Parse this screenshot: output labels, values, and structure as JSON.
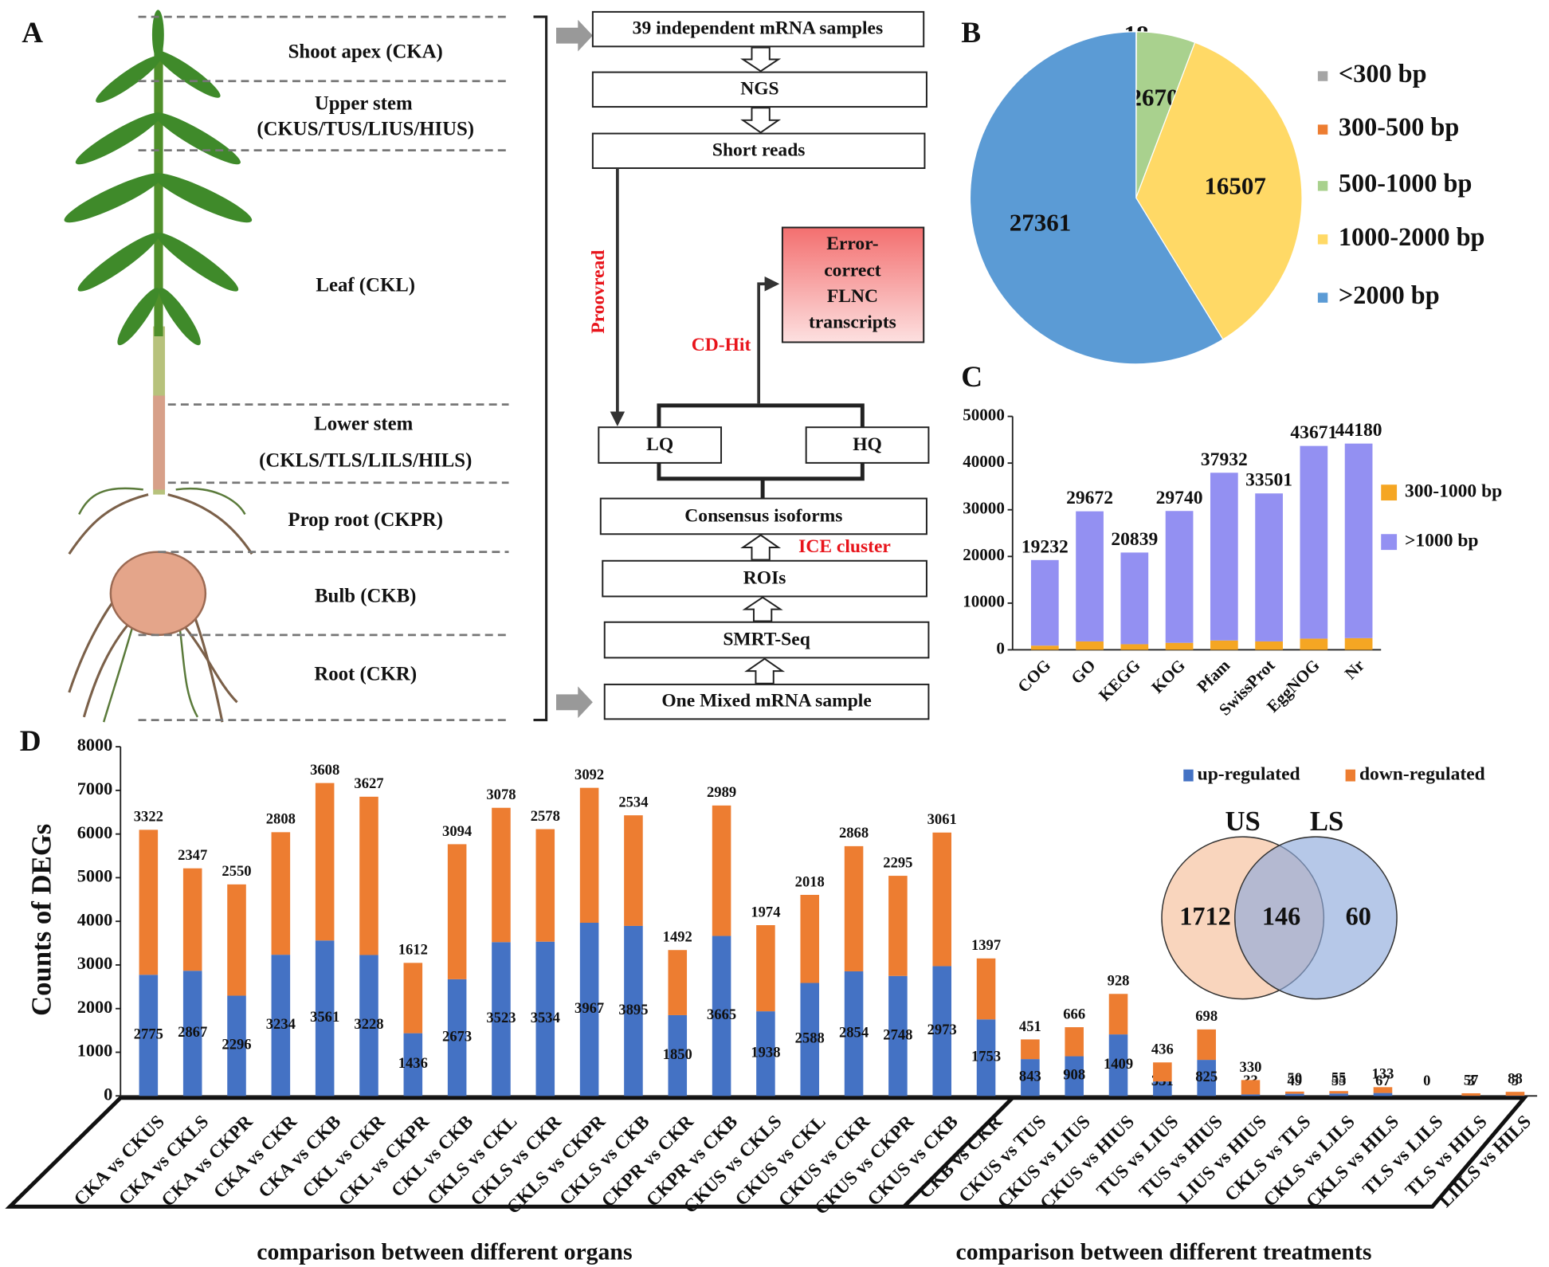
{
  "panel_labels": [
    "A",
    "B",
    "C",
    "D"
  ],
  "organ_labels": [
    "Shoot apex (CKA)",
    "Upper stem",
    "(CKUS/TUS/LIUS/HIUS)",
    "Leaf (CKL)",
    "Lower stem",
    "(CKLS/TLS/LILS/HILS)",
    "Prop root (CKPR)",
    "Bulb (CKB)",
    "Root (CKR)"
  ],
  "flowchart": {
    "boxes": [
      "39 independent mRNA samples",
      "NGS",
      "Short reads",
      "LQ",
      "HQ",
      "Consensus isoforms",
      "ROIs",
      "SMRT-Seq",
      "One Mixed mRNA sample"
    ],
    "result": [
      "Error-",
      "correct",
      "FLNC",
      "transcripts"
    ],
    "steps": [
      "Proovread",
      "CD-Hit",
      "ICE cluster"
    ]
  },
  "chart_data": [
    {
      "type": "pie",
      "categories": [
        "<300 bp",
        "300-500 bp",
        "500-1000 bp",
        "1000-2000 bp",
        ">2000 bp"
      ],
      "values": [
        0,
        18,
        2670,
        16507,
        27361
      ],
      "colors": [
        "#a5a5a5",
        "#ed7d31",
        "#a9d18e",
        "#ffd966",
        "#5b9bd5"
      ],
      "legend": "right"
    },
    {
      "type": "bar",
      "stacked": true,
      "categories": [
        "COG",
        "GO",
        "KEGG",
        "KOG",
        "Pfam",
        "SwissProt",
        "EggNOG",
        "Nr"
      ],
      "series": [
        {
          "name": "300-1000 bp",
          "color": "#f5a623",
          "values": [
            900,
            1800,
            1200,
            1500,
            2000,
            1800,
            2400,
            2500
          ]
        },
        {
          "name": ">1000 bp",
          "color": "#9390f2",
          "values": [
            18332,
            27872,
            19639,
            28240,
            35932,
            31701,
            41271,
            41680
          ]
        }
      ],
      "totals": [
        19232,
        29672,
        20839,
        29740,
        37932,
        33501,
        43671,
        44180
      ],
      "ylim": [
        0,
        50000
      ],
      "yticks": [
        0,
        10000,
        20000,
        30000,
        40000,
        50000
      ],
      "legend": "right"
    },
    {
      "type": "bar",
      "stacked": true,
      "y_label": "Counts of DEGs",
      "categories": [
        "CKA vs CKUS",
        "CKA vs CKLS",
        "CKA vs CKPR",
        "CKA vs CKR",
        "CKA vs CKB",
        "CKL vs CKR",
        "CKL vs CKPR",
        "CKL vs CKB",
        "CKLS vs CKL",
        "CKLS vs CKR",
        "CKLS vs CKPR",
        "CKLS vs CKB",
        "CKPR vs CKR",
        "CKPR vs CKB",
        "CKUS vs CKLS",
        "CKUS vs CKL",
        "CKUS vs CKR",
        "CKUS vs CKPR",
        "CKUS vs CKB",
        "CKB vs CKR",
        "CKUS vs TUS",
        "CKUS vs LIUS",
        "CKUS vs HIUS",
        "TUS vs LIUS",
        "TUS vs HIUS",
        "LIUS vs HIUS",
        "CKLS vs TLS",
        "CKLS vs LILS",
        "CKLS vs HILS",
        "TLS vs LILS",
        "TLS vs HILS",
        "LIILS vs HILS"
      ],
      "series": [
        {
          "name": "up-regulated",
          "color": "#4472c4",
          "values": [
            2775,
            2867,
            2296,
            3234,
            3561,
            3228,
            1436,
            2673,
            3523,
            3534,
            3967,
            3895,
            1850,
            3665,
            1938,
            2588,
            2854,
            2748,
            2973,
            1753,
            843,
            908,
            1409,
            331,
            825,
            33,
            49,
            55,
            67,
            0,
            3,
            5
          ]
        },
        {
          "name": "down-regulated",
          "color": "#ed7d31",
          "values": [
            3322,
            2347,
            2550,
            2808,
            3608,
            3627,
            1612,
            3094,
            3078,
            2578,
            3092,
            2534,
            1492,
            2989,
            1974,
            2018,
            2868,
            2295,
            3061,
            1397,
            451,
            666,
            928,
            436,
            698,
            330,
            50,
            55,
            133,
            null,
            57,
            88
          ]
        }
      ],
      "groups": [
        "comparison between different organs",
        "comparison between different treatments"
      ],
      "ylim": [
        0,
        8000
      ],
      "yticks": [
        0,
        1000,
        2000,
        3000,
        4000,
        5000,
        6000,
        7000,
        8000
      ],
      "legend": "top-right"
    }
  ],
  "venn": {
    "sets": [
      "US",
      "LS"
    ],
    "values": [
      1712,
      146,
      60
    ]
  }
}
